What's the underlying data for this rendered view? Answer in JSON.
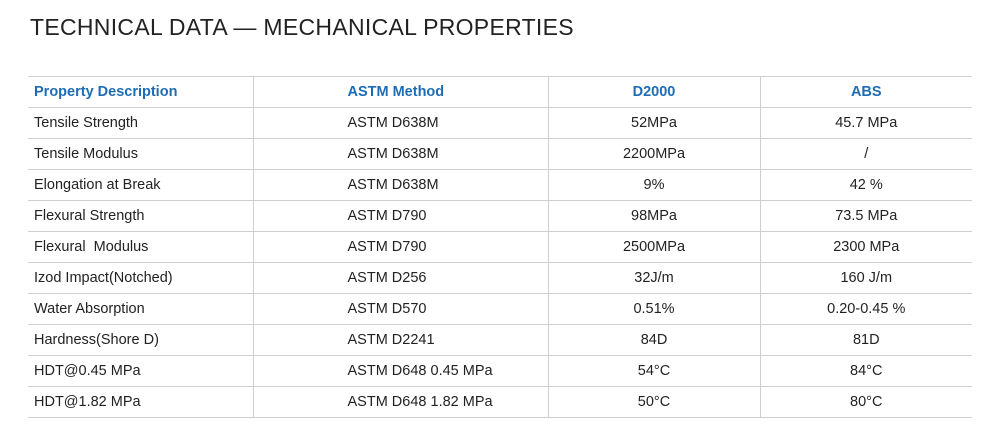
{
  "title": "TECHNICAL DATA — MECHANICAL PROPERTIES",
  "table": {
    "header": [
      "Property Description",
      "ASTM Method",
      "D2000",
      "ABS"
    ],
    "rows": [
      [
        "Tensile Strength",
        "ASTM D638M",
        "52MPa",
        "45.7 MPa"
      ],
      [
        "Tensile Modulus",
        "ASTM D638M",
        "2200MPa",
        "/"
      ],
      [
        "Elongation at Break",
        "ASTM D638M",
        "9%",
        "42 %"
      ],
      [
        "Flexural Strength",
        "ASTM D790",
        "98MPa",
        "73.5 MPa"
      ],
      [
        "Flexural  Modulus",
        "ASTM D790",
        "2500MPa",
        "2300 MPa"
      ],
      [
        "Izod Impact(Notched)",
        "ASTM D256",
        "32J/m",
        "160 J/m"
      ],
      [
        "Water Absorption",
        "ASTM D570",
        "0.51%",
        "0.20-0.45 %"
      ],
      [
        "Hardness(Shore D)",
        "ASTM D2241",
        "84D",
        "81D"
      ],
      [
        "HDT@0.45 MPa",
        "ASTM D648 0.45 MPa",
        "54°C",
        "84°C"
      ],
      [
        "HDT@1.82 MPa",
        "ASTM D648 1.82 MPa",
        "50°C",
        "80°C"
      ]
    ]
  }
}
